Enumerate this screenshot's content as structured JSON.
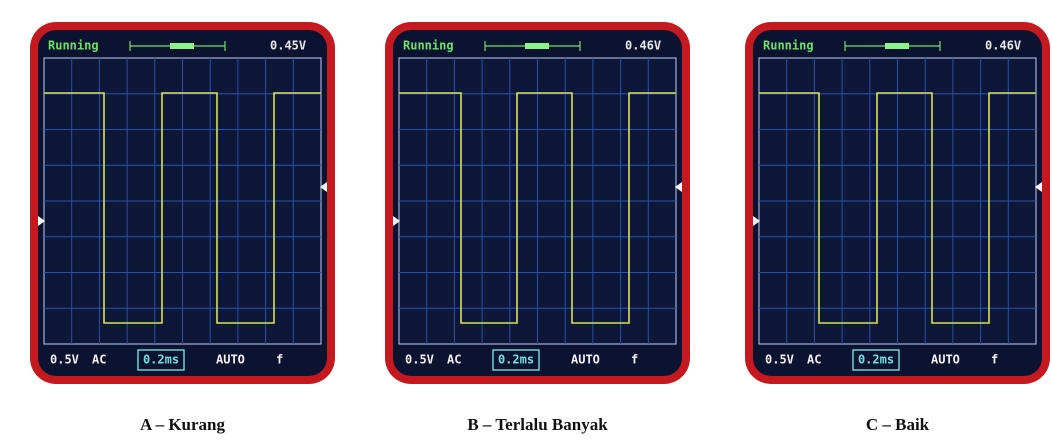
{
  "panels": [
    {
      "status": "Running",
      "voltage": "0.45V",
      "volts_div": "0.5V",
      "coupling": "AC",
      "timebase": "0.2ms",
      "trigger_mode": "AUTO",
      "trigger_edge": "f",
      "caption": "A – Kurang"
    },
    {
      "status": "Running",
      "voltage": "0.46V",
      "volts_div": "0.5V",
      "coupling": "AC",
      "timebase": "0.2ms",
      "trigger_mode": "AUTO",
      "trigger_edge": "f",
      "caption": "B – Terlalu Banyak"
    },
    {
      "status": "Running",
      "voltage": "0.46V",
      "volts_div": "0.5V",
      "coupling": "AC",
      "timebase": "0.2ms",
      "trigger_mode": "AUTO",
      "trigger_edge": "f",
      "caption": "C – Baik"
    }
  ]
}
